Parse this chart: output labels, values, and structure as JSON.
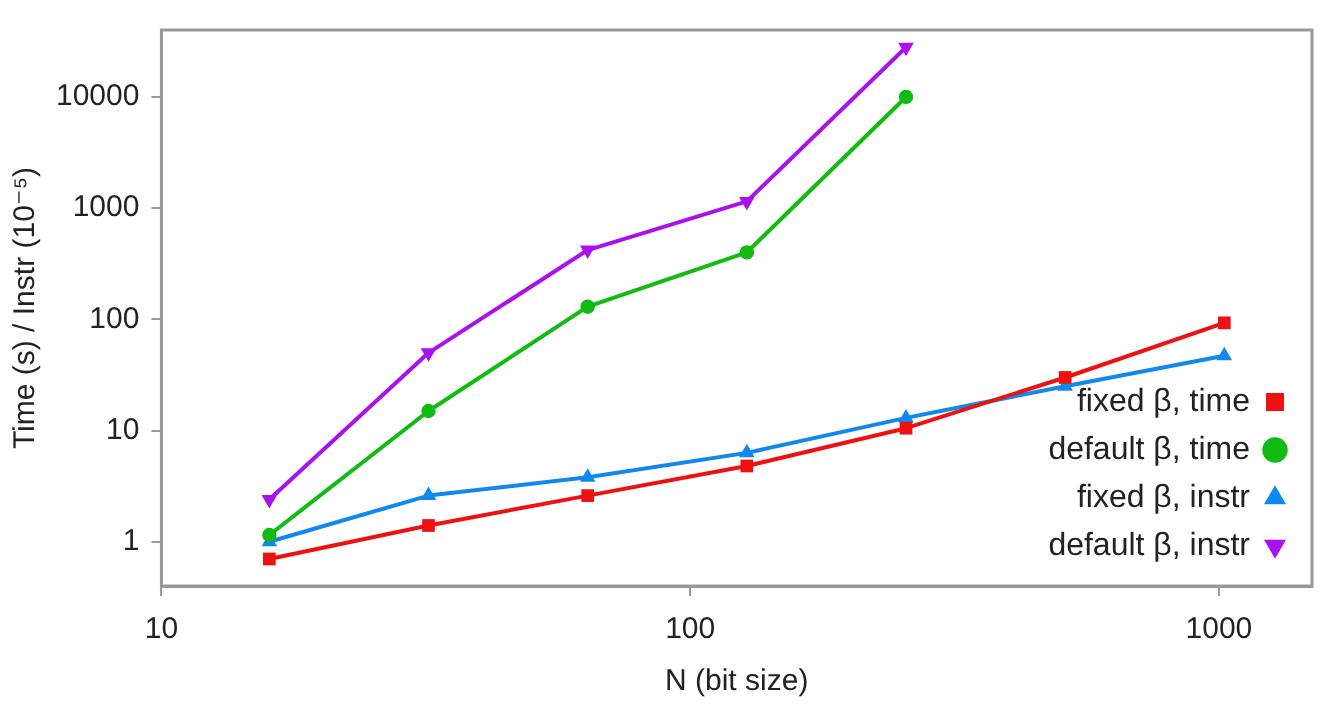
{
  "chart_data": {
    "type": "line",
    "xlabel": "N (bit size)",
    "ylabel": "Time (s) / Instr (10⁻⁵)",
    "log": "xy",
    "grid": false,
    "legend": "bottom right",
    "line_style": "solid",
    "xlim": [
      10,
      1500
    ],
    "xticks": [
      10,
      100,
      1000
    ],
    "ylim": [
      0.4,
      40000
    ],
    "yticks": [
      1,
      10,
      100,
      1000,
      10000
    ],
    "series": [
      {
        "name": "fixed β, time",
        "color": "#ee1111",
        "marker": "square",
        "x": [
          16,
          32,
          64,
          128,
          256,
          512,
          1024
        ],
        "values": [
          0.7,
          1.4,
          2.6,
          4.8,
          10.5,
          30,
          93
        ]
      },
      {
        "name": "default β, time",
        "color": "#11bb11",
        "marker": "circle",
        "x": [
          16,
          32,
          64,
          128,
          256
        ],
        "values": [
          1.15,
          15,
          130,
          400,
          10000
        ]
      },
      {
        "name": "fixed β, instr",
        "color": "#1188ee",
        "marker": "triangle",
        "x": [
          16,
          32,
          64,
          128,
          256,
          512,
          1024
        ],
        "values": [
          1.0,
          2.6,
          3.8,
          6.3,
          13,
          25,
          47
        ]
      },
      {
        "name": "default β, instr",
        "color": "#aa11ee",
        "marker": "triangle-down",
        "x": [
          16,
          32,
          64,
          128,
          256
        ],
        "values": [
          2.4,
          50,
          420,
          1150,
          28000
        ]
      }
    ]
  }
}
